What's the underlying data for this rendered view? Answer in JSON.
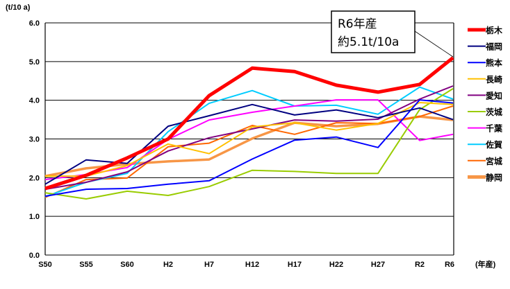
{
  "chart_data": {
    "type": "line",
    "ylabel": "(t/10 a)",
    "xlabel": "(年産)",
    "ylim": [
      0,
      6
    ],
    "yticks": [
      "0.0",
      "1.0",
      "2.0",
      "3.0",
      "4.0",
      "5.0",
      "6.0"
    ],
    "grid": true,
    "legend": "right",
    "categories": [
      "S50",
      "S55",
      "S60",
      "H2",
      "H7",
      "H12",
      "H17",
      "H22",
      "H27",
      "R2",
      "R6"
    ],
    "annotation": {
      "line1": "R6年産",
      "line2": "約5.1t/10a"
    },
    "series": [
      {
        "name": "栃木",
        "color": "#FF0000",
        "thick": true,
        "values": [
          1.72,
          2.06,
          2.51,
          3.0,
          4.12,
          4.83,
          4.74,
          4.39,
          4.21,
          4.41,
          5.1
        ]
      },
      {
        "name": "福岡",
        "color": "#000080",
        "values": [
          1.83,
          2.46,
          2.37,
          3.33,
          3.6,
          3.89,
          3.62,
          3.75,
          3.55,
          3.8,
          3.5
        ]
      },
      {
        "name": "熊本",
        "color": "#0000FF",
        "values": [
          1.52,
          1.7,
          1.72,
          1.83,
          1.92,
          2.48,
          2.97,
          3.05,
          2.78,
          4.01,
          3.93
        ]
      },
      {
        "name": "長崎",
        "color": "#FFC000",
        "values": [
          2.04,
          2.04,
          2.31,
          2.87,
          2.62,
          3.31,
          3.42,
          3.23,
          3.4,
          3.94,
          3.89
        ]
      },
      {
        "name": "愛知",
        "color": "#800080",
        "values": [
          1.7,
          1.88,
          2.15,
          2.69,
          3.03,
          3.26,
          3.49,
          3.46,
          3.51,
          4.03,
          4.37
        ]
      },
      {
        "name": "茨城",
        "color": "#99CC00",
        "values": [
          1.61,
          1.45,
          1.65,
          1.54,
          1.77,
          2.19,
          2.16,
          2.11,
          2.11,
          3.76,
          4.3
        ]
      },
      {
        "name": "千葉",
        "color": "#FF00FF",
        "values": [
          1.95,
          2.08,
          2.26,
          2.99,
          3.49,
          3.69,
          3.85,
          4.01,
          4.01,
          2.96,
          3.12
        ]
      },
      {
        "name": "佐賀",
        "color": "#00CCFF",
        "values": [
          1.51,
          1.88,
          2.11,
          3.19,
          3.92,
          4.25,
          3.85,
          3.87,
          3.64,
          4.34,
          4.03
        ]
      },
      {
        "name": "宮城",
        "color": "#FF6600",
        "values": [
          1.49,
          1.95,
          1.99,
          2.8,
          2.89,
          3.35,
          3.12,
          3.42,
          3.4,
          3.58,
          3.85
        ]
      },
      {
        "name": "静岡",
        "color": "#F79646",
        "thick": true,
        "values": [
          2.04,
          2.24,
          2.35,
          2.42,
          2.47,
          3.01,
          3.42,
          3.33,
          3.39,
          3.58,
          3.49
        ]
      }
    ]
  }
}
